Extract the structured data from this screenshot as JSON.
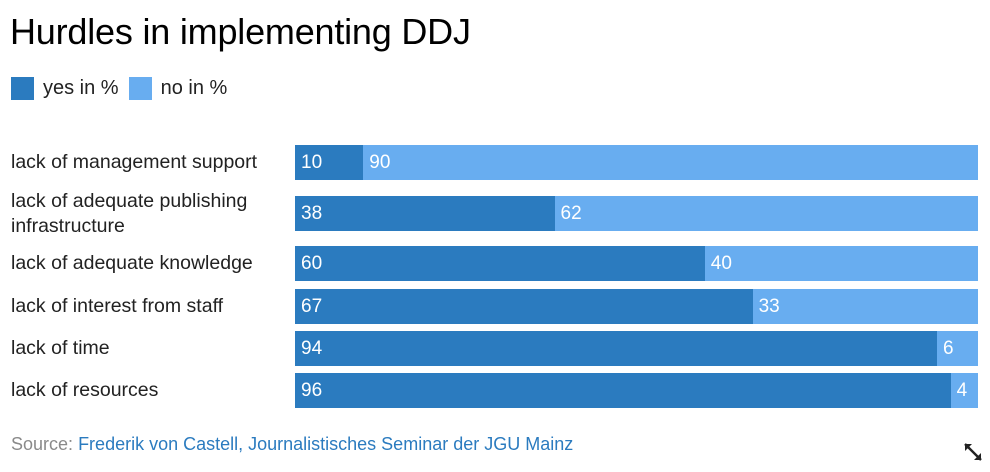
{
  "chart_data": {
    "type": "bar",
    "orientation": "horizontal",
    "stacked": true,
    "title": "Hurdles in implementing DDJ",
    "categories": [
      "lack of management support",
      "lack of adequate publishing infrastructure",
      "lack of adequate knowledge",
      "lack of interest from staff",
      "lack of time",
      "lack of resources"
    ],
    "series": [
      {
        "name": "yes in %",
        "color": "#2b7bbf",
        "values": [
          10,
          38,
          60,
          67,
          94,
          96
        ]
      },
      {
        "name": "no in %",
        "color": "#68adf0",
        "values": [
          90,
          62,
          40,
          33,
          6,
          4
        ]
      }
    ],
    "xlim": [
      0,
      100
    ],
    "grid": false,
    "legend_position": "top-left"
  },
  "source": {
    "prefix": "Source:",
    "link_text": "Frederik von Castell, Journalistisches Seminar der JGU Mainz"
  },
  "icons": {
    "expand": "expand-arrows-icon"
  }
}
